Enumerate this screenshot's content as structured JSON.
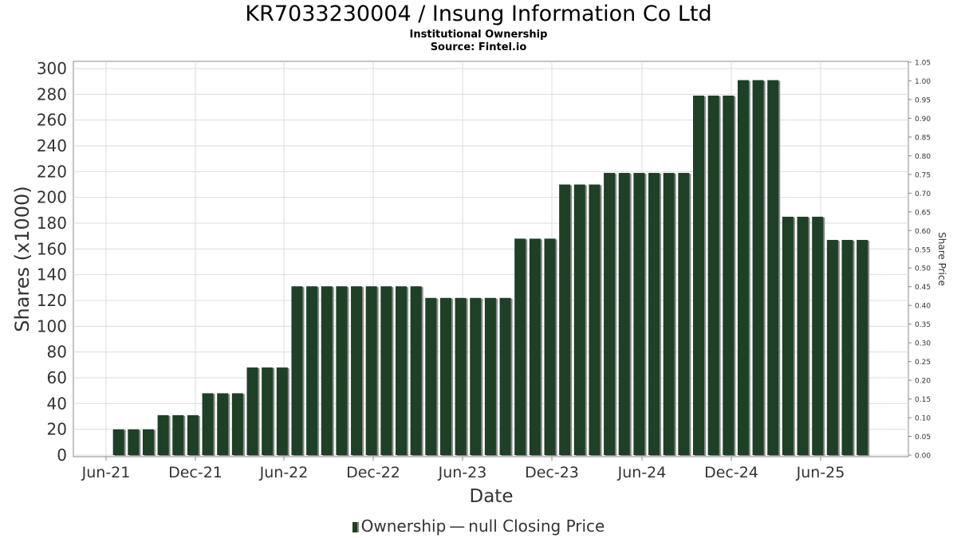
{
  "header": {
    "title": "KR7033230004 / Insung Information Co Ltd",
    "subtitle": "Institutional Ownership",
    "source": "Source: Fintel.io"
  },
  "legend": {
    "ownership": "Ownership",
    "price": "null Closing Price"
  },
  "colors": {
    "bar": "#1d4026",
    "bar_shadow": "#888888",
    "grid": "#dddddd",
    "axis": "#888888"
  },
  "chart_data": {
    "type": "bar",
    "xlabel": "Date",
    "ylabel": "Shares (x1000)",
    "y2label": "Share Price",
    "ylim": [
      0,
      300
    ],
    "y2lim": [
      0,
      1.05
    ],
    "yticks": [
      "0",
      "20",
      "40",
      "60",
      "80",
      "100",
      "120",
      "140",
      "160",
      "180",
      "200",
      "220",
      "240",
      "260",
      "280",
      "300"
    ],
    "y2ticks": [
      "0.00",
      "0.05",
      "0.10",
      "0.15",
      "0.20",
      "0.25",
      "0.30",
      "0.35",
      "0.40",
      "0.45",
      "0.50",
      "0.55",
      "0.60",
      "0.65",
      "0.70",
      "0.75",
      "0.80",
      "0.85",
      "0.90",
      "0.95",
      "1.00",
      "1.05"
    ],
    "xticks": [
      "Jun-21",
      "Dec-21",
      "Jun-22",
      "Dec-22",
      "Jun-23",
      "Dec-23",
      "Jun-24",
      "Dec-24",
      "Jun-25"
    ],
    "grid": true,
    "legend_position": "bottom",
    "series": [
      {
        "name": "Ownership",
        "values": [
          0,
          20,
          20,
          20,
          31,
          31,
          31,
          48,
          48,
          48,
          68,
          68,
          68,
          131,
          131,
          131,
          131,
          131,
          131,
          131,
          131,
          131,
          122,
          122,
          122,
          122,
          122,
          122,
          168,
          168,
          168,
          210,
          210,
          210,
          219,
          219,
          219,
          219,
          219,
          219,
          279,
          279,
          279,
          291,
          291,
          291,
          185,
          185,
          185,
          167,
          167,
          167
        ]
      }
    ]
  }
}
